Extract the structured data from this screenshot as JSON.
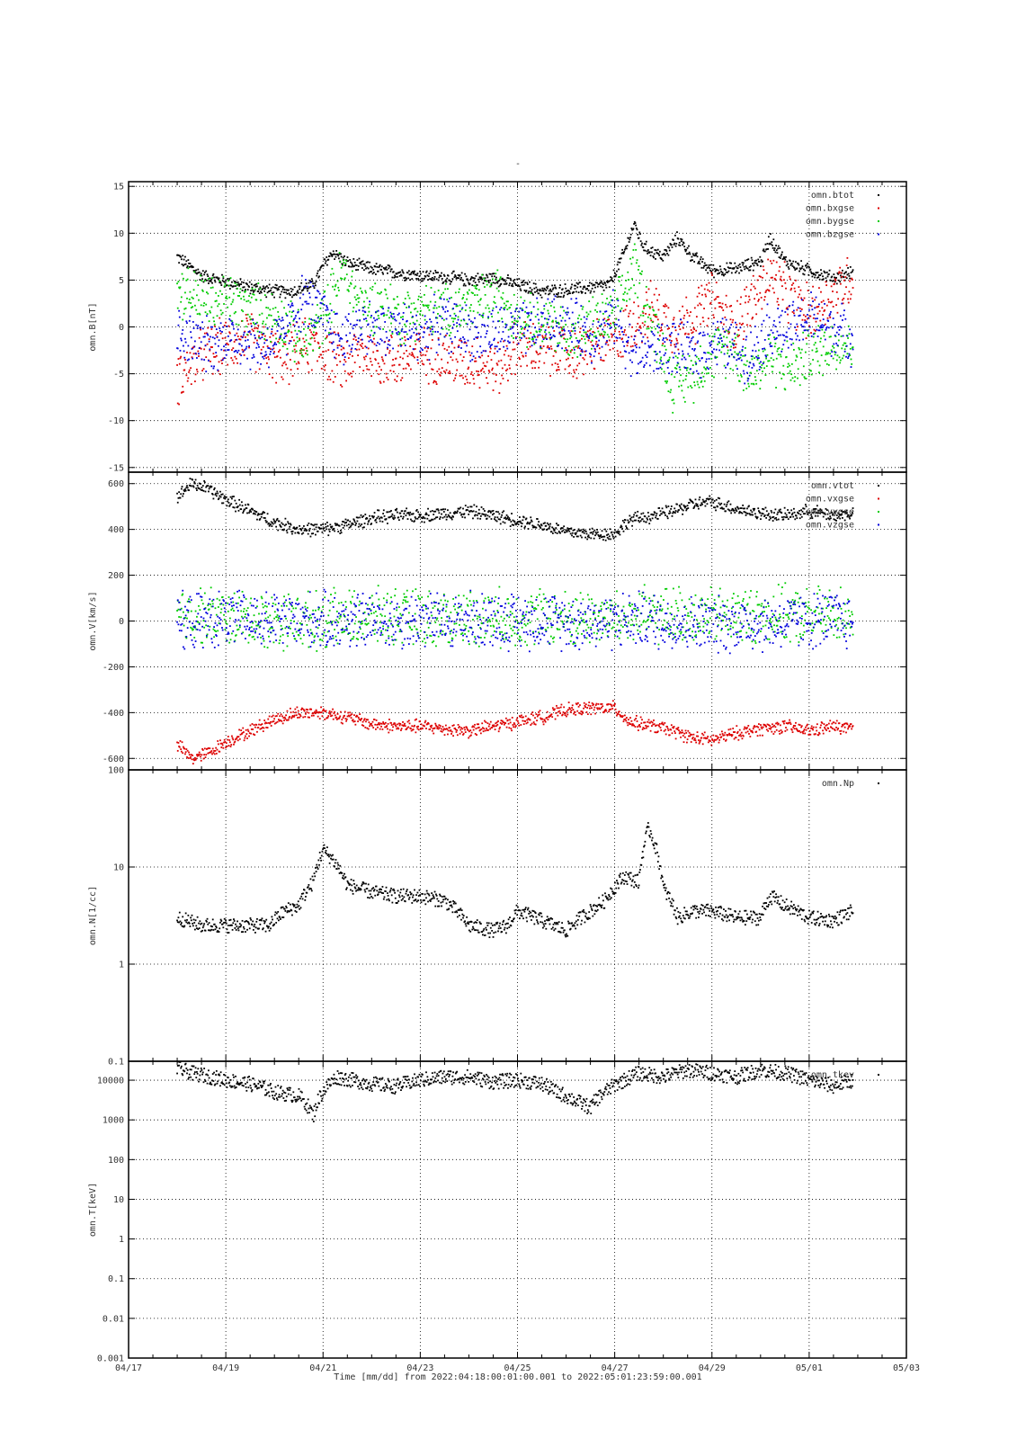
{
  "figure_title": "-",
  "chart_data": [
    {
      "type": "scatter",
      "ylabel": "omn.B[nT]",
      "scale": "linear",
      "ylim": [
        -15.5,
        15.5
      ],
      "yticks": [
        -15,
        -10,
        -5,
        0,
        5,
        10,
        15
      ],
      "ytick_labels": [
        "-15",
        "-10",
        "-5",
        "0",
        "5",
        "10",
        "15"
      ],
      "grid": true,
      "legend_position": "top-right",
      "series": [
        {
          "name": "omn.btot",
          "color": "#000000",
          "x": [
            18.0,
            18.5,
            19.0,
            19.5,
            20.0,
            20.4,
            20.8,
            21.0,
            21.2,
            21.5,
            22.0,
            22.5,
            23.0,
            23.5,
            24.0,
            24.5,
            25.0,
            25.5,
            26.0,
            26.5,
            26.9,
            27.2,
            27.4,
            27.6,
            28.0,
            28.3,
            28.6,
            29.0,
            29.5,
            30.0,
            30.2,
            30.5,
            31.0,
            31.5,
            31.9
          ],
          "values": [
            7.5,
            5.5,
            4.8,
            4.2,
            3.8,
            3.8,
            4.5,
            6.5,
            8.0,
            6.8,
            6.2,
            5.8,
            5.5,
            5.3,
            5.0,
            5.2,
            4.5,
            3.8,
            3.9,
            4.2,
            4.5,
            8.0,
            11.0,
            8.5,
            7.5,
            9.5,
            7.5,
            6.0,
            6.2,
            7.0,
            9.5,
            7.0,
            6.0,
            5.2,
            5.8
          ]
        },
        {
          "name": "omn.bxgse",
          "color": "#dd0000",
          "x": [
            18.0,
            18.3,
            18.7,
            19.0,
            19.4,
            19.8,
            20.2,
            20.6,
            21.0,
            21.4,
            21.8,
            22.2,
            22.6,
            23.0,
            23.4,
            23.8,
            24.2,
            24.6,
            25.0,
            25.4,
            25.8,
            26.2,
            26.6,
            27.0,
            27.4,
            27.8,
            28.2,
            28.6,
            29.0,
            29.4,
            29.8,
            30.2,
            30.6,
            31.0,
            31.4,
            31.9
          ],
          "values": [
            -5.5,
            -4.0,
            -2.5,
            -2.0,
            -1.0,
            -2.5,
            -3.5,
            -2.0,
            -2.5,
            -4.0,
            -2.5,
            -3.5,
            -3.5,
            -2.8,
            -3.2,
            -3.8,
            -3.5,
            -4.5,
            -2.0,
            -2.5,
            -2.5,
            -3.0,
            -2.0,
            -1.5,
            0.5,
            2.0,
            0.0,
            1.0,
            3.0,
            0.0,
            2.5,
            5.5,
            3.0,
            1.5,
            3.0,
            5.5
          ]
        },
        {
          "name": "omn.bygse",
          "color": "#00cc00",
          "x": [
            18.0,
            18.3,
            18.7,
            19.0,
            19.4,
            19.8,
            20.2,
            20.6,
            21.0,
            21.4,
            21.8,
            22.2,
            22.6,
            23.0,
            23.4,
            23.8,
            24.2,
            24.6,
            25.0,
            25.4,
            25.8,
            26.2,
            26.6,
            27.0,
            27.4,
            27.8,
            28.2,
            28.6,
            29.0,
            29.4,
            29.8,
            30.2,
            30.6,
            31.0,
            31.4,
            31.9
          ],
          "values": [
            4.0,
            3.5,
            2.5,
            3.0,
            2.0,
            1.5,
            0.5,
            -2.0,
            1.0,
            6.0,
            2.0,
            2.5,
            1.0,
            2.0,
            1.5,
            2.0,
            2.5,
            3.5,
            1.5,
            0.5,
            0.0,
            -1.0,
            0.5,
            1.0,
            6.5,
            0.0,
            -6.0,
            -5.0,
            -3.0,
            -2.0,
            -5.0,
            -3.0,
            -4.5,
            -3.0,
            -2.0,
            -1.5
          ]
        },
        {
          "name": "omn.bzgse",
          "color": "#0000dd",
          "x": [
            18.0,
            18.3,
            18.7,
            19.0,
            19.4,
            19.8,
            20.2,
            20.6,
            21.0,
            21.4,
            21.8,
            22.2,
            22.6,
            23.0,
            23.4,
            23.8,
            24.2,
            24.6,
            25.0,
            25.4,
            25.8,
            26.2,
            26.6,
            27.0,
            27.4,
            27.8,
            28.2,
            28.6,
            29.0,
            29.4,
            29.8,
            30.2,
            30.6,
            31.0,
            31.4,
            31.9
          ],
          "values": [
            -1.0,
            -1.5,
            -2.0,
            -1.0,
            -1.5,
            -2.0,
            -1.0,
            3.0,
            1.0,
            -1.5,
            0.5,
            -0.5,
            0.0,
            -1.0,
            0.5,
            0.0,
            -1.0,
            -0.5,
            -0.5,
            0.0,
            0.5,
            0.0,
            -1.0,
            1.0,
            -3.0,
            -2.5,
            -2.0,
            -3.0,
            -1.5,
            -2.0,
            -3.0,
            0.0,
            -0.5,
            1.0,
            0.0,
            -1.0
          ]
        }
      ]
    },
    {
      "type": "scatter",
      "ylabel": "omn.V[km/s]",
      "scale": "linear",
      "ylim": [
        -650,
        650
      ],
      "yticks": [
        -600,
        -400,
        -200,
        0,
        200,
        400,
        600
      ],
      "ytick_labels": [
        "-600",
        "-400",
        "-200",
        "0",
        "200",
        "400",
        "600"
      ],
      "grid": true,
      "legend_position": "top-right",
      "series": [
        {
          "name": "omn.vtot",
          "color": "#000000",
          "x": [
            18.0,
            18.3,
            18.6,
            19.0,
            19.5,
            20.0,
            20.5,
            21.0,
            21.5,
            22.0,
            22.5,
            23.0,
            23.5,
            24.0,
            24.5,
            25.0,
            25.5,
            26.0,
            26.5,
            27.0,
            27.3,
            27.8,
            28.2,
            28.6,
            29.0,
            29.5,
            30.0,
            30.5,
            31.0,
            31.5,
            31.9
          ],
          "values": [
            540,
            600,
            580,
            530,
            480,
            430,
            400,
            400,
            420,
            450,
            460,
            460,
            470,
            480,
            460,
            440,
            420,
            390,
            380,
            380,
            440,
            460,
            480,
            510,
            520,
            490,
            470,
            460,
            480,
            460,
            470
          ]
        },
        {
          "name": "omn.vxgse",
          "color": "#dd0000",
          "x": [
            18.0,
            18.3,
            18.6,
            19.0,
            19.5,
            20.0,
            20.5,
            21.0,
            21.5,
            22.0,
            22.5,
            23.0,
            23.5,
            24.0,
            24.5,
            25.0,
            25.5,
            26.0,
            26.5,
            27.0,
            27.3,
            27.8,
            28.2,
            28.6,
            29.0,
            29.5,
            30.0,
            30.5,
            31.0,
            31.5,
            31.9
          ],
          "values": [
            -540,
            -600,
            -580,
            -530,
            -480,
            -430,
            -400,
            -400,
            -420,
            -450,
            -460,
            -460,
            -470,
            -480,
            -460,
            -440,
            -420,
            -390,
            -380,
            -380,
            -440,
            -460,
            -480,
            -510,
            -520,
            -490,
            -470,
            -460,
            -480,
            -460,
            -470
          ]
        },
        {
          "name": "omn.vygse",
          "color": "#00cc00",
          "x": [
            18.0,
            18.5,
            19.0,
            19.5,
            20.0,
            20.5,
            21.0,
            21.5,
            22.0,
            22.5,
            23.0,
            23.5,
            24.0,
            24.5,
            25.0,
            25.5,
            26.0,
            26.5,
            27.0,
            27.5,
            28.0,
            28.5,
            29.0,
            29.5,
            30.0,
            30.5,
            31.0,
            31.5,
            31.9
          ],
          "values": [
            20,
            30,
            15,
            10,
            5,
            0,
            5,
            10,
            15,
            20,
            15,
            10,
            20,
            15,
            10,
            20,
            10,
            15,
            5,
            20,
            25,
            30,
            20,
            25,
            30,
            25,
            20,
            30,
            35
          ]
        },
        {
          "name": "omn.vzgse",
          "color": "#0000dd",
          "x": [
            18.0,
            18.5,
            19.0,
            19.5,
            20.0,
            20.5,
            21.0,
            21.5,
            22.0,
            22.5,
            23.0,
            23.5,
            24.0,
            24.5,
            25.0,
            25.5,
            26.0,
            26.5,
            27.0,
            27.5,
            28.0,
            28.5,
            29.0,
            29.5,
            30.0,
            30.5,
            31.0,
            31.5,
            31.9
          ],
          "values": [
            -10,
            0,
            10,
            5,
            0,
            5,
            0,
            -5,
            5,
            0,
            10,
            0,
            5,
            10,
            0,
            5,
            0,
            -5,
            0,
            10,
            -5,
            -10,
            -20,
            -10,
            -15,
            -5,
            0,
            10,
            -10
          ]
        }
      ]
    },
    {
      "type": "scatter",
      "ylabel": "omn.N[1/cc]",
      "scale": "log",
      "ylim": [
        0.1,
        100
      ],
      "yticks": [
        0.1,
        1,
        10,
        100
      ],
      "ytick_labels": [
        "0.1",
        "1",
        "10",
        "100"
      ],
      "grid": true,
      "legend_position": "top-right",
      "series": [
        {
          "name": "omn.Np",
          "color": "#000000",
          "x": [
            18.0,
            18.5,
            19.0,
            19.5,
            19.9,
            20.2,
            20.5,
            20.8,
            21.0,
            21.2,
            21.5,
            22.0,
            22.5,
            23.0,
            23.5,
            24.0,
            24.5,
            24.8,
            25.0,
            25.5,
            26.0,
            26.5,
            26.8,
            27.2,
            27.5,
            27.7,
            28.0,
            28.3,
            28.6,
            29.0,
            29.5,
            30.0,
            30.2,
            30.5,
            31.0,
            31.5,
            31.9
          ],
          "values": [
            3.0,
            2.5,
            2.5,
            2.5,
            2.5,
            3.5,
            4.0,
            7.0,
            15.0,
            12.0,
            6.5,
            5.5,
            5.0,
            5.0,
            4.5,
            2.5,
            2.2,
            2.5,
            3.5,
            2.8,
            2.2,
            3.5,
            4.5,
            8.0,
            7.0,
            25.0,
            6.0,
            3.0,
            3.5,
            3.5,
            3.0,
            3.0,
            5.0,
            4.0,
            3.0,
            2.8,
            3.5
          ]
        }
      ]
    },
    {
      "type": "scatter",
      "ylabel": "omn.T[keV]",
      "scale": "log",
      "ylim": [
        0.001,
        30000
      ],
      "yticks": [
        0.001,
        0.01,
        0.1,
        1,
        10,
        100,
        1000,
        10000
      ],
      "ytick_labels": [
        "0.001",
        "0.01",
        "0.1",
        "1",
        "10",
        "100",
        "1000",
        "10000"
      ],
      "grid": true,
      "legend_position": "top-right",
      "series": [
        {
          "name": "omn.tkev",
          "color": "#000000",
          "x": [
            18.0,
            18.3,
            18.7,
            19.0,
            19.5,
            20.0,
            20.5,
            20.8,
            21.0,
            21.3,
            21.6,
            22.0,
            22.5,
            23.0,
            23.5,
            24.0,
            24.5,
            25.0,
            25.5,
            25.8,
            26.2,
            26.5,
            26.8,
            27.2,
            27.5,
            28.0,
            28.5,
            29.0,
            29.5,
            30.0,
            30.5,
            31.0,
            31.5,
            31.9
          ],
          "values": [
            20000,
            15000,
            12000,
            10000,
            8000,
            5000,
            4000,
            1200,
            5000,
            12000,
            10000,
            8000,
            7000,
            10000,
            12000,
            12000,
            9000,
            10000,
            8000,
            5000,
            3000,
            2000,
            5000,
            10000,
            15000,
            12000,
            18000,
            15000,
            12000,
            18000,
            15000,
            10000,
            7000,
            10000
          ]
        }
      ]
    }
  ],
  "xaxis": {
    "tick_values": [
      17,
      19,
      21,
      23,
      25,
      27,
      29,
      31,
      33
    ],
    "tick_labels": [
      "04/17",
      "04/19",
      "04/21",
      "04/23",
      "04/25",
      "04/27",
      "04/29",
      "05/01",
      "05/03"
    ],
    "xlim": [
      17,
      33
    ],
    "minor_step": 0.5,
    "title": "Time [mm/dd]  from 2022:04:18:00:01:00.001  to  2022:05:01:23:59:00.001"
  }
}
